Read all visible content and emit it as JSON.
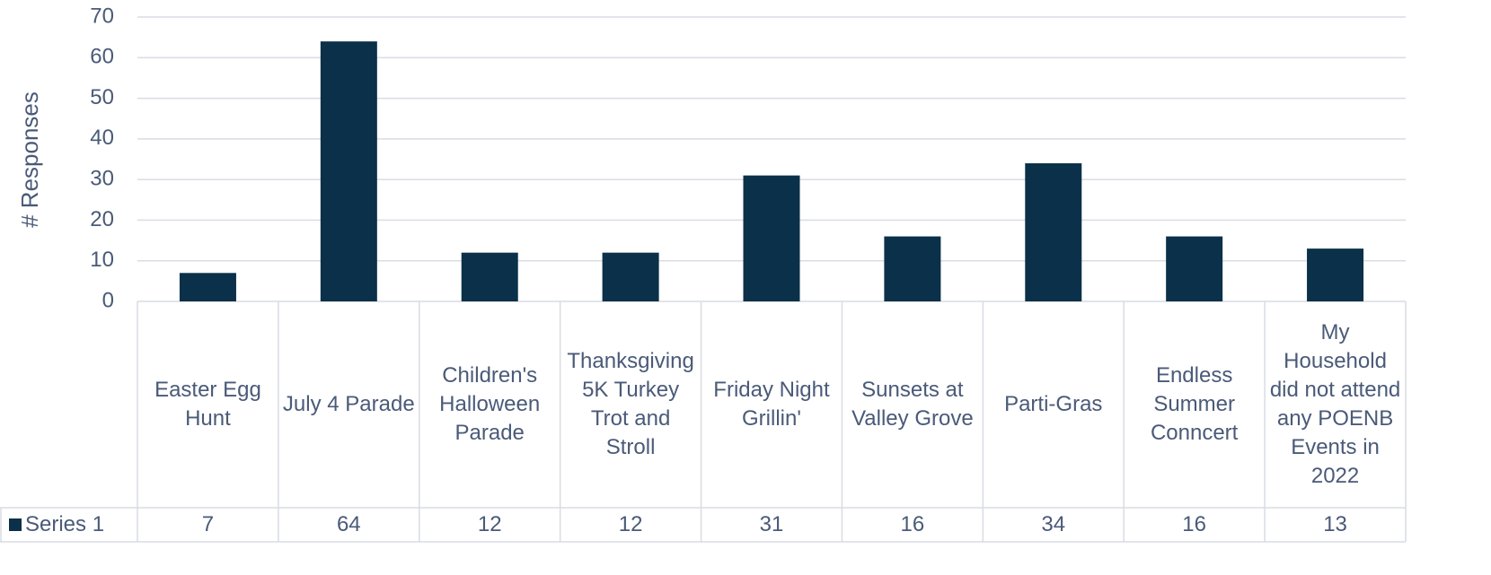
{
  "chart_data": {
    "type": "bar",
    "y_label": "# Responses",
    "categories": [
      "Easter Egg Hunt",
      "July 4 Parade",
      "Children's Halloween Parade",
      "Thanksgiving 5K Turkey Trot and Stroll",
      "Friday Night Grillin'",
      "Sunsets at Valley Grove",
      "Parti-Gras",
      "Endless Summer Conncert",
      "My Household did not attend any POENB Events in 2022"
    ],
    "series": [
      {
        "name": "Series 1",
        "color": "#0b3049",
        "values": [
          7,
          64,
          12,
          12,
          31,
          16,
          34,
          16,
          13
        ]
      }
    ],
    "ylim": [
      0,
      70
    ],
    "yticks": [
      0,
      10,
      20,
      30,
      40,
      50,
      60,
      70
    ],
    "grid": true,
    "data_table": true
  }
}
